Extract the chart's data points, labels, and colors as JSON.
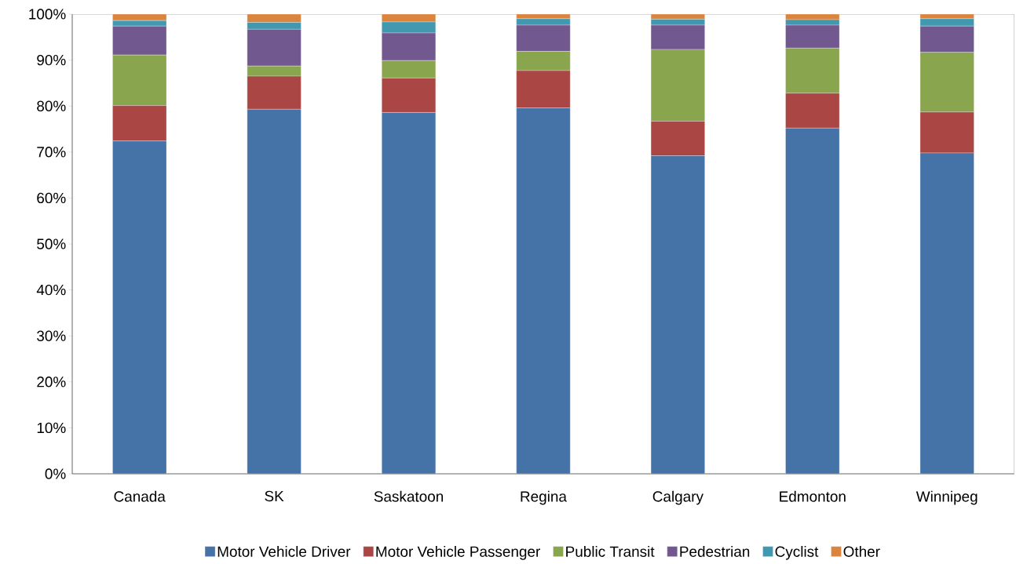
{
  "chart_data": {
    "type": "bar",
    "stacked": true,
    "categories": [
      "Canada",
      "SK",
      "Saskatoon",
      "Regina",
      "Calgary",
      "Edmonton",
      "Winnipeg"
    ],
    "series": [
      {
        "name": "Motor Vehicle Driver",
        "color": "#4572a7",
        "values": [
          72.4,
          79.3,
          78.6,
          79.6,
          69.2,
          75.2,
          69.8
        ]
      },
      {
        "name": "Motor Vehicle Passenger",
        "color": "#aa4643",
        "values": [
          7.7,
          7.2,
          7.5,
          8.1,
          7.5,
          7.6,
          8.9
        ]
      },
      {
        "name": "Public Transit",
        "color": "#89a54e",
        "values": [
          11.0,
          2.2,
          3.8,
          4.2,
          15.6,
          9.8,
          13.0
        ]
      },
      {
        "name": "Pedestrian",
        "color": "#71588f",
        "values": [
          6.3,
          8.0,
          6.0,
          5.7,
          5.3,
          5.0,
          5.7
        ]
      },
      {
        "name": "Cyclist",
        "color": "#4198af",
        "values": [
          1.2,
          1.5,
          2.4,
          1.4,
          1.3,
          1.2,
          1.6
        ]
      },
      {
        "name": "Other",
        "color": "#db843d",
        "values": [
          1.4,
          1.8,
          1.7,
          1.0,
          1.1,
          1.2,
          1.0
        ]
      }
    ],
    "ylim": [
      0,
      100
    ],
    "yticks": [
      {
        "value": 0,
        "label": "0%"
      },
      {
        "value": 10,
        "label": "10%"
      },
      {
        "value": 20,
        "label": "20%"
      },
      {
        "value": 30,
        "label": "30%"
      },
      {
        "value": 40,
        "label": "40%"
      },
      {
        "value": 50,
        "label": "50%"
      },
      {
        "value": 60,
        "label": "60%"
      },
      {
        "value": 70,
        "label": "70%"
      },
      {
        "value": 80,
        "label": "80%"
      },
      {
        "value": 90,
        "label": "90%"
      },
      {
        "value": 100,
        "label": "100%"
      }
    ],
    "legend": "bottom"
  }
}
